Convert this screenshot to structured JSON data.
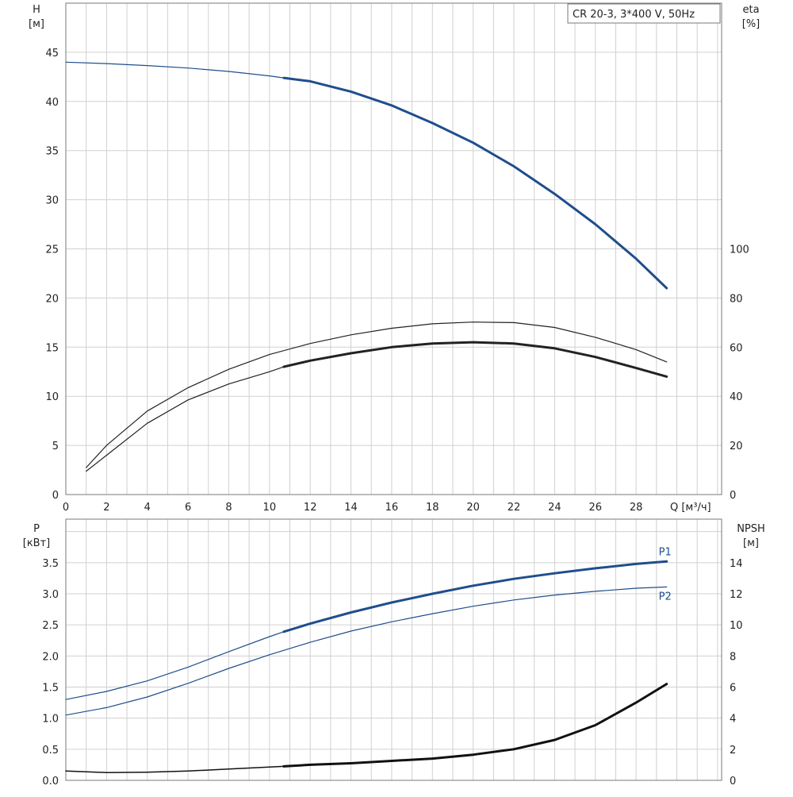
{
  "chart_data": [
    {
      "id": "upper",
      "type": "line",
      "title": "CR 20-3, 3*400 V, 50Hz",
      "x_label": "Q [м³/ч]",
      "x_ticks": [
        0,
        2,
        4,
        6,
        8,
        10,
        12,
        14,
        16,
        18,
        20,
        22,
        24,
        26,
        28
      ],
      "xlim": [
        0,
        32.2
      ],
      "left_axis": {
        "label_line1": "H",
        "label_line2": "[м]",
        "range": [
          0,
          50
        ],
        "ticks": [
          0,
          5,
          10,
          15,
          20,
          25,
          30,
          35,
          40,
          45
        ]
      },
      "right_axis": {
        "label_line1": "eta",
        "label_line2": "[%]",
        "range": [
          0,
          200
        ],
        "ticks": [
          0,
          20,
          40,
          60,
          80,
          100
        ]
      },
      "series": [
        {
          "name": "H",
          "axis": "left",
          "color": "#1f4e8c",
          "width": 1.2,
          "bold_width": 3,
          "bold_from": 10.7,
          "x": [
            0,
            2,
            4,
            6,
            8,
            10,
            10.7,
            12,
            14,
            16,
            18,
            20,
            22,
            24,
            26,
            28,
            29.5
          ],
          "y": [
            44.0,
            43.85,
            43.65,
            43.4,
            43.05,
            42.6,
            42.4,
            42.05,
            41.0,
            39.6,
            37.8,
            35.8,
            33.4,
            30.6,
            27.5,
            24.0,
            21.0
          ]
        },
        {
          "name": "eta-outer",
          "axis": "right",
          "color": "#222222",
          "width": 1.2,
          "bold_width": 1.2,
          "bold_from": 99,
          "x": [
            1,
            2,
            4,
            6,
            8,
            10,
            12,
            14,
            16,
            18,
            20,
            22,
            24,
            26,
            28,
            29.5
          ],
          "y": [
            11,
            20,
            34,
            43.5,
            51,
            57,
            61.5,
            65,
            67.7,
            69.5,
            70.2,
            70,
            68,
            64,
            59,
            54
          ]
        },
        {
          "name": "eta",
          "axis": "right",
          "color": "#222222",
          "width": 1.2,
          "bold_width": 3,
          "bold_from": 10.7,
          "x": [
            1,
            2,
            4,
            6,
            8,
            10,
            10.7,
            12,
            14,
            16,
            18,
            20,
            22,
            24,
            26,
            28,
            29.5
          ],
          "y": [
            9.5,
            16,
            29,
            38.5,
            45,
            50,
            52,
            54.5,
            57.5,
            60,
            61.5,
            62,
            61.5,
            59.5,
            56,
            51.5,
            48
          ]
        }
      ]
    },
    {
      "id": "lower",
      "type": "line",
      "xlim": [
        0,
        32.2
      ],
      "left_axis": {
        "label_line1": "P",
        "label_line2": "[кВт]",
        "range": [
          0,
          4.2
        ],
        "ticks": [
          "0.0",
          "0.5",
          "1.0",
          "1.5",
          "2.0",
          "2.5",
          "3.0",
          "3.5"
        ]
      },
      "right_axis": {
        "label_line1": "NPSH",
        "label_line2": "[м]",
        "range": [
          0,
          16.8
        ],
        "ticks": [
          0,
          2,
          4,
          6,
          8,
          10,
          12,
          14
        ]
      },
      "series": [
        {
          "name": "P1",
          "label": "P1",
          "axis": "left",
          "color": "#1f4e8c",
          "width": 1.2,
          "bold_width": 3,
          "bold_from": 10.7,
          "x": [
            0,
            2,
            4,
            6,
            8,
            10,
            10.7,
            12,
            14,
            16,
            18,
            20,
            22,
            24,
            26,
            28,
            29.5
          ],
          "y": [
            1.3,
            1.43,
            1.6,
            1.82,
            2.07,
            2.31,
            2.39,
            2.52,
            2.7,
            2.86,
            3.0,
            3.13,
            3.24,
            3.33,
            3.41,
            3.48,
            3.52
          ]
        },
        {
          "name": "P2",
          "label": "P2",
          "axis": "left",
          "color": "#1f4e8c",
          "width": 1.2,
          "bold_width": 1.2,
          "bold_from": 99,
          "x": [
            0,
            2,
            4,
            6,
            8,
            10,
            12,
            14,
            16,
            18,
            20,
            22,
            24,
            26,
            28,
            29.5
          ],
          "y": [
            1.05,
            1.17,
            1.34,
            1.56,
            1.8,
            2.02,
            2.22,
            2.4,
            2.55,
            2.68,
            2.8,
            2.9,
            2.98,
            3.04,
            3.09,
            3.11
          ]
        },
        {
          "name": "NPSH",
          "axis": "right",
          "color": "#111111",
          "width": 1.5,
          "bold_width": 3,
          "bold_from": 10.7,
          "x": [
            0,
            2,
            4,
            6,
            8,
            10,
            10.7,
            12,
            14,
            16,
            18,
            20,
            22,
            24,
            26,
            28,
            29.5
          ],
          "y": [
            0.6,
            0.5,
            0.52,
            0.6,
            0.73,
            0.86,
            0.9,
            1.0,
            1.1,
            1.25,
            1.4,
            1.65,
            2.0,
            2.6,
            3.55,
            5.0,
            6.2
          ]
        }
      ]
    }
  ]
}
